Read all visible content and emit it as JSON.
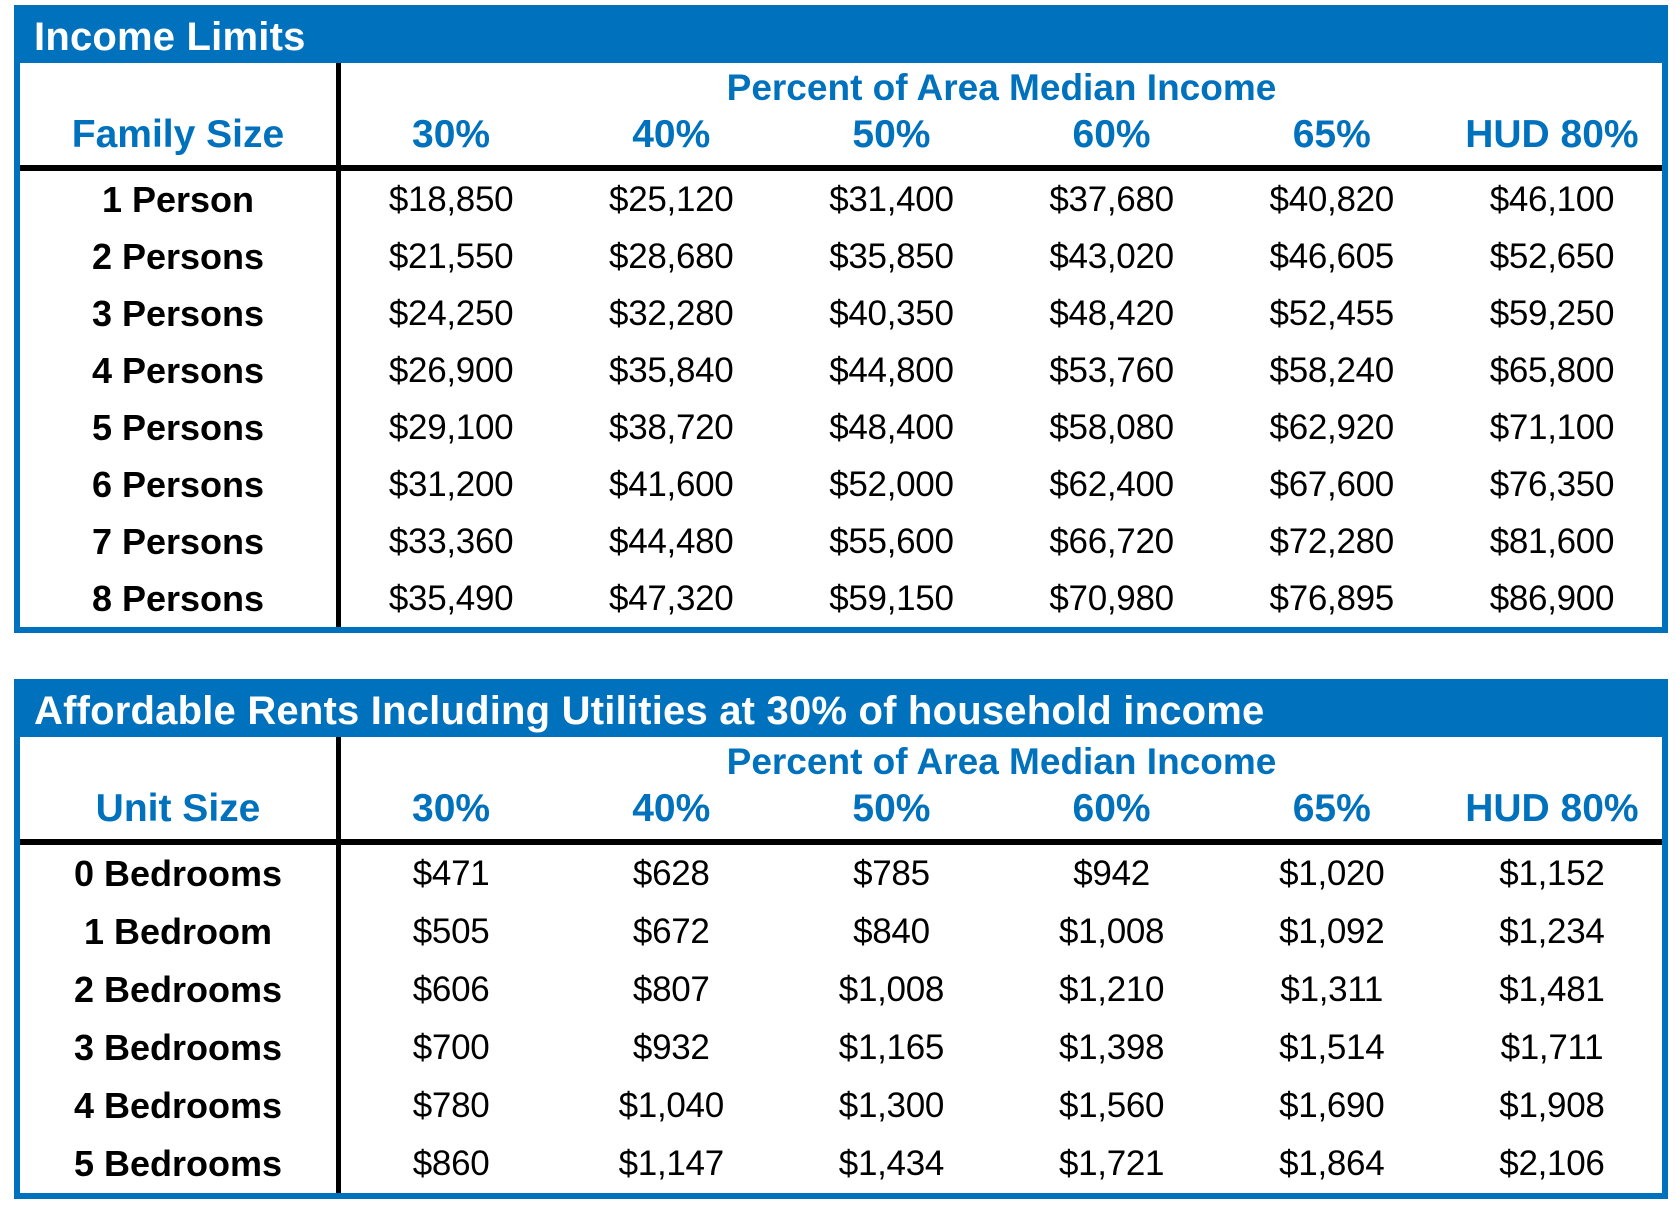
{
  "accent_color": "#0071BC",
  "tables": [
    {
      "title": "Income Limits",
      "group_header": "Percent of Area Median Income",
      "row_header_label": "Family Size",
      "columns": [
        "30%",
        "40%",
        "50%",
        "60%",
        "65%",
        "HUD 80%"
      ],
      "rows": [
        {
          "label": "1 Person",
          "values": [
            "$18,850",
            "$25,120",
            "$31,400",
            "$37,680",
            "$40,820",
            "$46,100"
          ]
        },
        {
          "label": "2 Persons",
          "values": [
            "$21,550",
            "$28,680",
            "$35,850",
            "$43,020",
            "$46,605",
            "$52,650"
          ]
        },
        {
          "label": "3 Persons",
          "values": [
            "$24,250",
            "$32,280",
            "$40,350",
            "$48,420",
            "$52,455",
            "$59,250"
          ]
        },
        {
          "label": "4 Persons",
          "values": [
            "$26,900",
            "$35,840",
            "$44,800",
            "$53,760",
            "$58,240",
            "$65,800"
          ]
        },
        {
          "label": "5 Persons",
          "values": [
            "$29,100",
            "$38,720",
            "$48,400",
            "$58,080",
            "$62,920",
            "$71,100"
          ]
        },
        {
          "label": "6 Persons",
          "values": [
            "$31,200",
            "$41,600",
            "$52,000",
            "$62,400",
            "$67,600",
            "$76,350"
          ]
        },
        {
          "label": "7 Persons",
          "values": [
            "$33,360",
            "$44,480",
            "$55,600",
            "$66,720",
            "$72,280",
            "$81,600"
          ]
        },
        {
          "label": "8 Persons",
          "values": [
            "$35,490",
            "$47,320",
            "$59,150",
            "$70,980",
            "$76,895",
            "$86,900"
          ]
        }
      ]
    },
    {
      "title": "Affordable Rents Including Utilities at 30% of household income",
      "group_header": "Percent of Area Median Income",
      "row_header_label": "Unit Size",
      "columns": [
        "30%",
        "40%",
        "50%",
        "60%",
        "65%",
        "HUD 80%"
      ],
      "rows": [
        {
          "label": "0 Bedrooms",
          "values": [
            "$471",
            "$628",
            "$785",
            "$942",
            "$1,020",
            "$1,152"
          ]
        },
        {
          "label": "1 Bedroom",
          "values": [
            "$505",
            "$672",
            "$840",
            "$1,008",
            "$1,092",
            "$1,234"
          ]
        },
        {
          "label": "2 Bedrooms",
          "values": [
            "$606",
            "$807",
            "$1,008",
            "$1,210",
            "$1,311",
            "$1,481"
          ]
        },
        {
          "label": "3 Bedrooms",
          "values": [
            "$700",
            "$932",
            "$1,165",
            "$1,398",
            "$1,514",
            "$1,711"
          ]
        },
        {
          "label": "4 Bedrooms",
          "values": [
            "$780",
            "$1,040",
            "$1,300",
            "$1,560",
            "$1,690",
            "$1,908"
          ]
        },
        {
          "label": "5 Bedrooms",
          "values": [
            "$860",
            "$1,147",
            "$1,434",
            "$1,721",
            "$1,864",
            "$2,106"
          ]
        }
      ]
    }
  ]
}
